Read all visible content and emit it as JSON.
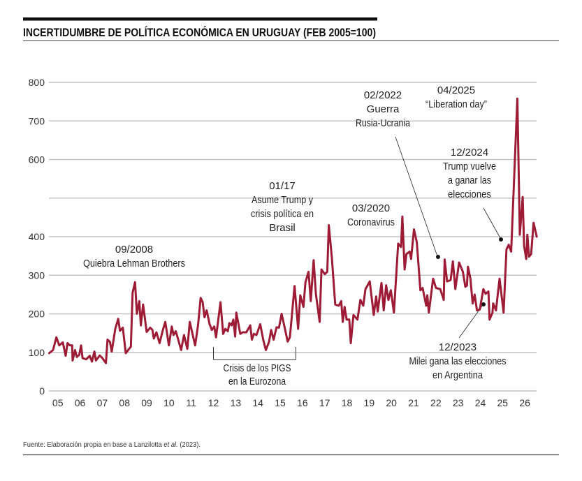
{
  "colors": {
    "series": "#9e1b36",
    "grid": "#c4c4c4",
    "text": "#222222",
    "rule": "#111111"
  },
  "chart_data": {
    "type": "line",
    "title": "INCERTIDUMBRE DE POLÍTICA ECONÓMICA EN URUGUAY (FEB 2005=100)",
    "source": {
      "before": "Fuente: Elaboración propia en base a Lanzilotta ",
      "italic": "et al.",
      "after": " (2023)."
    },
    "xlabel": "",
    "ylabel": "",
    "ylim": [
      0,
      800
    ],
    "xlim": [
      2005,
      2027
    ],
    "grid": true,
    "y_ticks": [
      0,
      100,
      200,
      300,
      400,
      500,
      600,
      700,
      800
    ],
    "y_tick_labels": [
      "0",
      "100",
      "200",
      "300",
      "400",
      "",
      "600",
      "700",
      "800"
    ],
    "x_ticks": [
      2005.5,
      2006.5,
      2007.5,
      2008.5,
      2009.5,
      2010.5,
      2011.5,
      2012.5,
      2013.5,
      2014.5,
      2015.5,
      2016.5,
      2017.5,
      2018.5,
      2019.5,
      2020.5,
      2021.5,
      2022.5,
      2023.5,
      2024.5,
      2025.5,
      2026.5
    ],
    "x_tick_labels": [
      "05",
      "06",
      "07",
      "08",
      "09",
      "10",
      "11",
      "12",
      "13",
      "14",
      "15",
      "16",
      "17",
      "18",
      "19",
      "20",
      "21",
      "22",
      "23",
      "24",
      "25",
      "26"
    ],
    "x": [
      2005.1,
      2005.27,
      2005.42,
      2005.55,
      2005.71,
      2005.84,
      2005.92,
      2006.03,
      2006.13,
      2006.15,
      2006.26,
      2006.34,
      2006.45,
      2006.53,
      2006.6,
      2006.76,
      2006.92,
      2007.02,
      2007.13,
      2007.2,
      2007.37,
      2007.49,
      2007.65,
      2007.72,
      2007.83,
      2007.91,
      2008.07,
      2008.2,
      2008.28,
      2008.41,
      2008.54,
      2008.77,
      2008.85,
      2008.96,
      2009.04,
      2009.15,
      2009.22,
      2009.32,
      2009.48,
      2009.64,
      2009.74,
      2009.8,
      2009.92,
      2010.06,
      2010.21,
      2010.32,
      2010.48,
      2010.61,
      2010.69,
      2010.79,
      2010.9,
      2011.03,
      2011.16,
      2011.31,
      2011.42,
      2011.66,
      2011.79,
      2011.91,
      2012.0,
      2012.08,
      2012.18,
      2012.31,
      2012.41,
      2012.52,
      2012.6,
      2012.8,
      2012.92,
      2013.02,
      2013.13,
      2013.2,
      2013.3,
      2013.38,
      2013.46,
      2013.51,
      2013.69,
      2013.8,
      2013.96,
      2014.14,
      2014.21,
      2014.3,
      2014.42,
      2014.59,
      2014.72,
      2014.84,
      2014.98,
      2015.08,
      2015.19,
      2015.32,
      2015.43,
      2015.55,
      2015.71,
      2015.82,
      2015.92,
      2016.13,
      2016.29,
      2016.39,
      2016.53,
      2016.62,
      2016.76,
      2016.86,
      2016.99,
      2017.09,
      2017.26,
      2017.34,
      2017.49,
      2017.6,
      2017.67,
      2017.81,
      2017.96,
      2018.12,
      2018.23,
      2018.3,
      2018.38,
      2018.47,
      2018.59,
      2018.66,
      2018.78,
      2018.96,
      2019.09,
      2019.22,
      2019.32,
      2019.51,
      2019.69,
      2019.8,
      2019.87,
      2020.04,
      2020.14,
      2020.25,
      2020.35,
      2020.46,
      2020.6,
      2020.79,
      2020.92,
      2020.98,
      2021.08,
      2021.16,
      2021.31,
      2021.37,
      2021.5,
      2021.63,
      2021.79,
      2021.89,
      2022.05,
      2022.1,
      2022.17,
      2022.36,
      2022.49,
      2022.68,
      2022.84,
      2022.88,
      2022.99,
      2023.09,
      2023.15,
      2023.25,
      2023.36,
      2023.53,
      2023.7,
      2023.81,
      2023.88,
      2023.93,
      2024.04,
      2024.14,
      2024.23,
      2024.33,
      2024.46,
      2024.62,
      2024.72,
      2024.85,
      2024.9,
      2025.03,
      2025.06,
      2025.19,
      2025.35,
      2025.53,
      2025.66,
      2025.76,
      2025.87,
      2026.15,
      2026.26,
      2026.39,
      2026.45,
      2026.55,
      2026.6,
      2026.67,
      2026.77,
      2026.88,
      2027.02
    ],
    "values": [
      98,
      106,
      139,
      118,
      126,
      91,
      124,
      118,
      118,
      79,
      106,
      88,
      94,
      118,
      85,
      82,
      91,
      76,
      102,
      79,
      92,
      85,
      72,
      133,
      127,
      102,
      161,
      187,
      156,
      164,
      98,
      115,
      255,
      282,
      200,
      233,
      170,
      224,
      153,
      164,
      158,
      136,
      152,
      124,
      158,
      179,
      118,
      167,
      145,
      155,
      133,
      106,
      145,
      109,
      179,
      118,
      170,
      241,
      230,
      191,
      209,
      173,
      158,
      167,
      139,
      230,
      148,
      161,
      155,
      176,
      170,
      185,
      141,
      203,
      148,
      152,
      152,
      170,
      133,
      148,
      145,
      173,
      133,
      106,
      127,
      158,
      133,
      165,
      164,
      200,
      158,
      128,
      139,
      272,
      161,
      248,
      218,
      282,
      309,
      233,
      339,
      252,
      179,
      315,
      303,
      309,
      430,
      345,
      224,
      221,
      233,
      179,
      218,
      185,
      185,
      124,
      197,
      185,
      236,
      221,
      264,
      284,
      197,
      245,
      206,
      280,
      209,
      274,
      236,
      261,
      203,
      382,
      373,
      452,
      315,
      355,
      361,
      342,
      419,
      385,
      261,
      267,
      221,
      248,
      203,
      291,
      267,
      264,
      236,
      341,
      284,
      286,
      288,
      336,
      264,
      333,
      309,
      270,
      273,
      322,
      291,
      227,
      250,
      209,
      211,
      264,
      252,
      258,
      185,
      203,
      227,
      209,
      291,
      203,
      367,
      379,
      361,
      758,
      405,
      503,
      376,
      342,
      405,
      348,
      355,
      436,
      400
    ],
    "annotations": [
      {
        "lines": [
          "09/2008",
          "Quiebra Lehman Brothers"
        ]
      },
      {
        "lines": [
          "01/17",
          "Asume Trump y",
          "crisis política en",
          "Brasil"
        ]
      },
      {
        "lines": [
          "Crisis de los PIGS",
          "en la Eurozona"
        ]
      },
      {
        "lines": [
          "03/2020",
          "Coronavirus"
        ]
      },
      {
        "lines": [
          "02/2022",
          "Guerra",
          "Rusia-Ucrania"
        ]
      },
      {
        "lines": [
          "04/2025",
          "“Liberation day”"
        ]
      },
      {
        "lines": [
          "12/2024",
          "Trump vuelve",
          "a ganar las",
          "elecciones"
        ]
      },
      {
        "lines": [
          "12/2023",
          "Milei gana las elecciones",
          "en Argentina"
        ]
      }
    ]
  }
}
